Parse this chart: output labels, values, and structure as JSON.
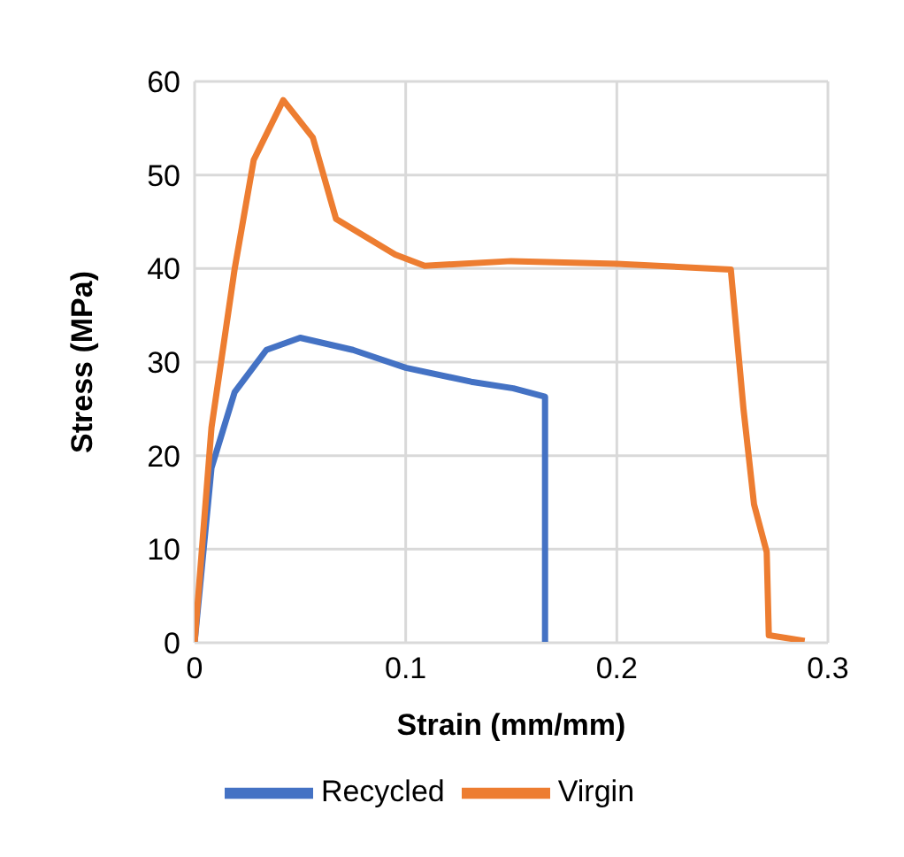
{
  "chart_data": {
    "type": "line",
    "xlabel": "Strain (mm/mm)",
    "ylabel": "Stress (MPa)",
    "xlim": [
      0,
      0.3
    ],
    "xticks": [
      0,
      0.1,
      0.2,
      0.3
    ],
    "ylim": [
      0,
      60
    ],
    "yticks": [
      0,
      10,
      20,
      30,
      40,
      50,
      60
    ],
    "grid": true,
    "legend": "bottom",
    "marker": "none",
    "line_style": "solid",
    "series": [
      {
        "name": "Recycled",
        "color": "#4472c4",
        "x": [
          0,
          0.008,
          0.019,
          0.034,
          0.05,
          0.075,
          0.1,
          0.131,
          0.151,
          0.166,
          0.166
        ],
        "values": [
          0,
          18.7,
          26.8,
          31.3,
          32.6,
          31.3,
          29.4,
          27.9,
          27.2,
          26.3,
          0
        ]
      },
      {
        "name": "Virgin",
        "color": "#ed7d31",
        "x": [
          0,
          0.008,
          0.019,
          0.028,
          0.042,
          0.056,
          0.067,
          0.095,
          0.109,
          0.15,
          0.2,
          0.254,
          0.26,
          0.265,
          0.271,
          0.272,
          0.289
        ],
        "values": [
          0,
          23,
          40,
          51.6,
          58,
          54,
          45.3,
          41.5,
          40.3,
          40.8,
          40.5,
          39.9,
          25,
          14.8,
          9.7,
          0.8,
          0.2
        ]
      }
    ]
  }
}
